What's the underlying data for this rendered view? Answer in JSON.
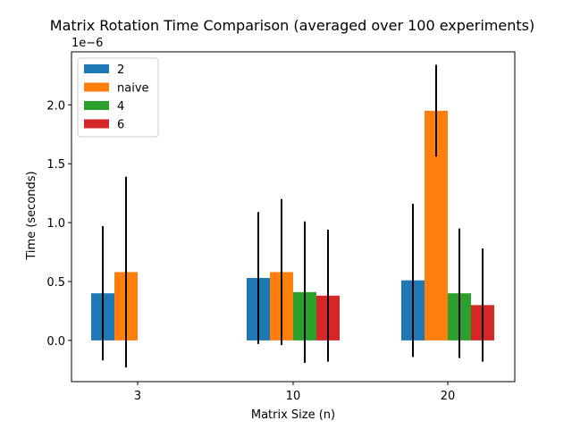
{
  "chart_data": {
    "type": "bar",
    "title": "Matrix Rotation Time Comparison (averaged over 100 experiments)",
    "xlabel": "Matrix Size (n)",
    "ylabel": "Time (seconds)",
    "scale_label": "1e−6",
    "scale": 1e-06,
    "categories": [
      "3",
      "10",
      "20"
    ],
    "ylim": [
      -0.35,
      2.45
    ],
    "yticks": [
      0.0,
      0.5,
      1.0,
      1.5,
      2.0
    ],
    "ytick_labels": [
      "0.0",
      "0.5",
      "1.0",
      "1.5",
      "2.0"
    ],
    "legend_position": "upper-left",
    "series": [
      {
        "name": "2",
        "color": "#1f77b4",
        "values": [
          0.4,
          0.53,
          0.51
        ],
        "errors": [
          0.57,
          0.56,
          0.65
        ]
      },
      {
        "name": "naive",
        "color": "#ff7f0e",
        "values": [
          0.58,
          0.58,
          1.95
        ],
        "errors": [
          0.81,
          0.62,
          0.39
        ]
      },
      {
        "name": "4",
        "color": "#2ca02c",
        "values": [
          null,
          0.41,
          0.4
        ],
        "errors": [
          null,
          0.6,
          0.55
        ]
      },
      {
        "name": "6",
        "color": "#d62728",
        "values": [
          null,
          0.38,
          0.3
        ],
        "errors": [
          null,
          0.56,
          0.48
        ]
      }
    ]
  }
}
